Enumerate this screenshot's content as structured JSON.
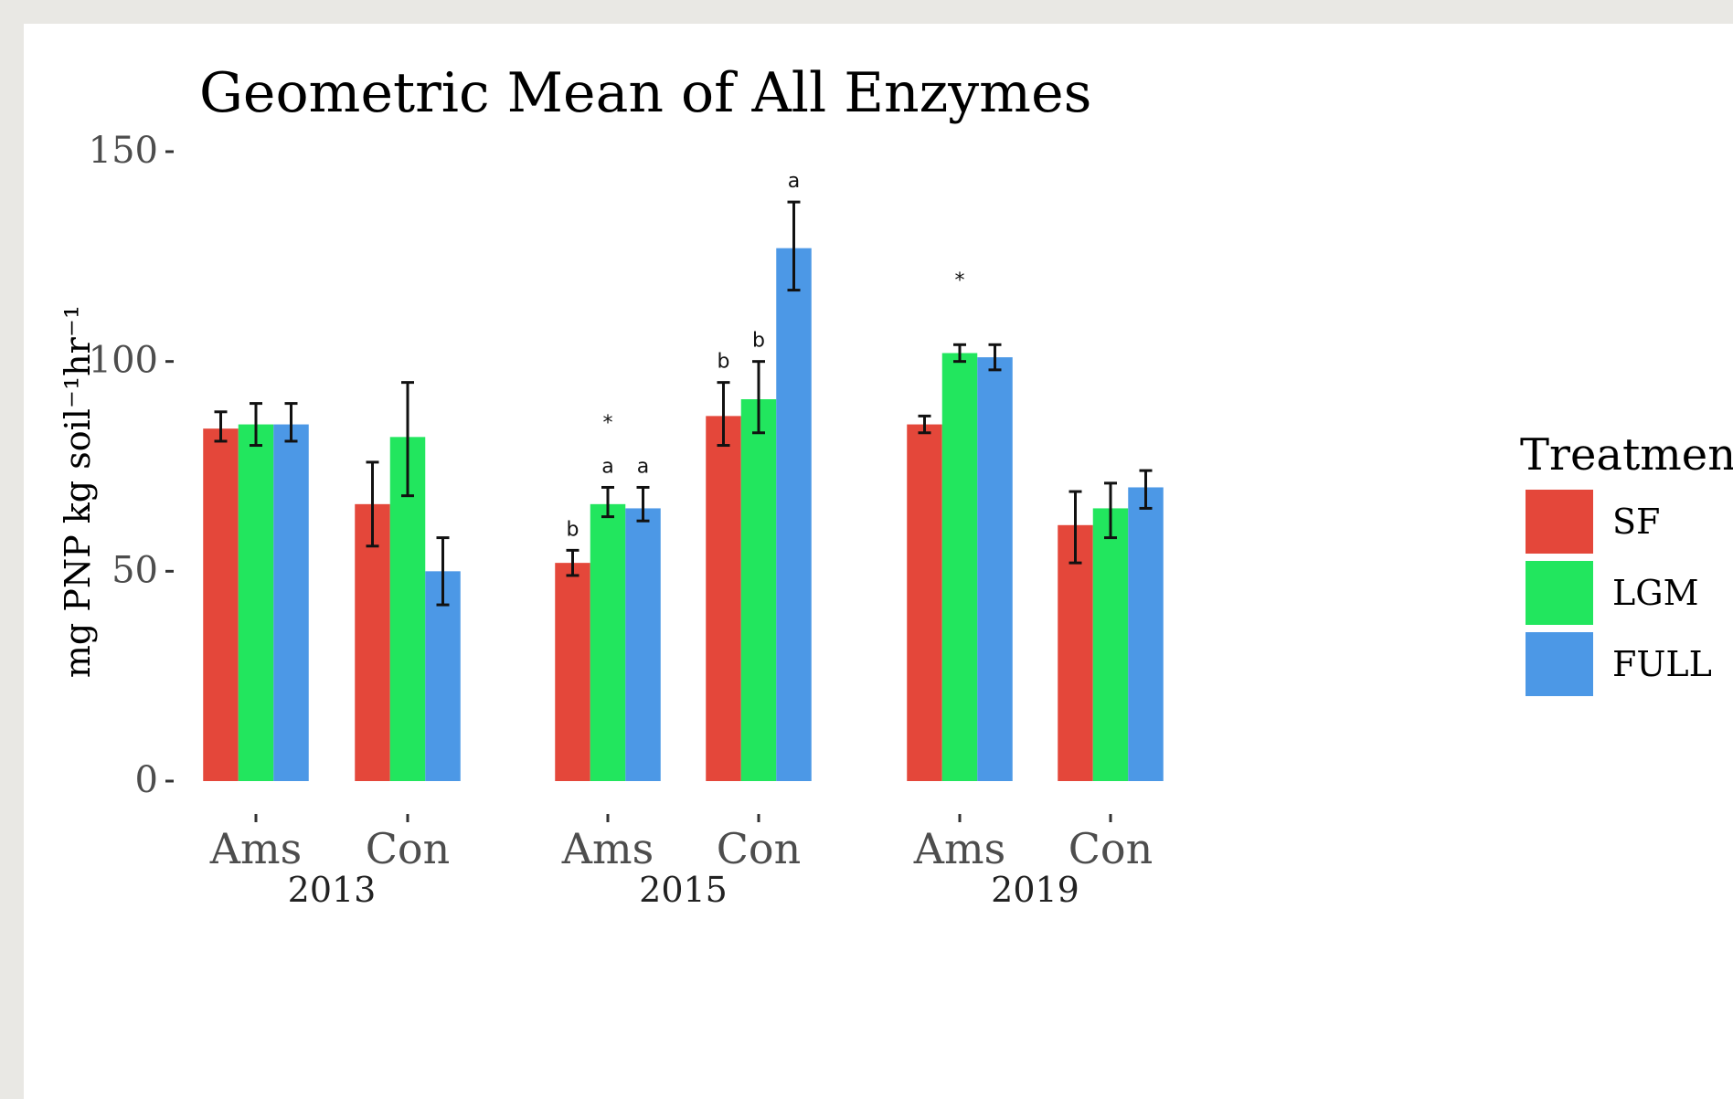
{
  "chart_data": {
    "type": "bar",
    "title": "Geometric Mean of All Enzymes",
    "ylabel": "mg PNP kg soil⁻¹hr⁻¹",
    "ylim": [
      0,
      150
    ],
    "yticks": [
      0,
      50,
      100,
      150
    ],
    "grid": false,
    "legend": {
      "title": "Treatment",
      "position": "right"
    },
    "groups": [
      "2013",
      "2015",
      "2019"
    ],
    "categories": [
      "Ams",
      "Con",
      "Ams",
      "Con",
      "Ams",
      "Con"
    ],
    "category_group": [
      "2013",
      "2013",
      "2015",
      "2015",
      "2019",
      "2019"
    ],
    "series": [
      {
        "name": "SF",
        "color": "#e4473a",
        "values": [
          84,
          66,
          52,
          87,
          85,
          61
        ],
        "error_low": [
          81,
          56,
          49,
          80,
          83,
          52
        ],
        "error_high": [
          88,
          76,
          55,
          95,
          87,
          69
        ],
        "labels": [
          "",
          "",
          "b",
          "b",
          "",
          ""
        ]
      },
      {
        "name": "LGM",
        "color": "#22e65e",
        "values": [
          85,
          82,
          66,
          91,
          102,
          65
        ],
        "error_low": [
          80,
          68,
          63,
          83,
          100,
          58
        ],
        "error_high": [
          90,
          95,
          70,
          100,
          104,
          71
        ],
        "labels": [
          "",
          "",
          "a",
          "b",
          "",
          ""
        ]
      },
      {
        "name": "FULL",
        "color": "#4c98e6",
        "values": [
          85,
          50,
          65,
          127,
          101,
          70
        ],
        "error_low": [
          81,
          42,
          62,
          117,
          98,
          65
        ],
        "error_high": [
          90,
          58,
          70,
          138,
          104,
          74
        ],
        "labels": [
          "",
          "",
          "a",
          "a",
          "",
          ""
        ]
      }
    ],
    "annotations": [
      {
        "category_index": 2,
        "text": "*",
        "y": 86
      },
      {
        "category_index": 4,
        "text": "*",
        "y": 120
      }
    ]
  }
}
